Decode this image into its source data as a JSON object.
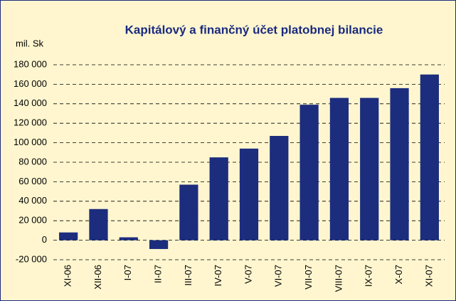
{
  "chart_data": {
    "type": "bar",
    "title": "Kapitálový a finančný účet platobnej bilancie",
    "y_label": "mil. Sk",
    "categories": [
      "XI-06",
      "XII-06",
      "I-07",
      "II-07",
      "III-07",
      "IV-07",
      "V-07",
      "VI-07",
      "VII-07",
      "VIII-07",
      "IX-07",
      "X-07",
      "XI-07"
    ],
    "values": [
      8000,
      32000,
      3000,
      -9000,
      57000,
      85000,
      94000,
      107000,
      139000,
      146000,
      146000,
      156000,
      170000
    ],
    "color": "#1c2d7e",
    "ylim": [
      -20000,
      180000
    ],
    "yticks": [
      {
        "value": -20000,
        "label": "-20 000"
      },
      0,
      {
        "value": 20000,
        "label": "20 000"
      },
      {
        "value": 40000,
        "label": "40 000"
      },
      {
        "value": 60000,
        "label": "60 000"
      },
      {
        "value": 80000,
        "label": "80 000"
      },
      {
        "value": 100000,
        "label": "100 000"
      },
      {
        "value": 120000,
        "label": "120 000"
      },
      {
        "value": 140000,
        "label": "140 000"
      },
      {
        "value": 160000,
        "label": "160 000"
      },
      {
        "value": 180000,
        "label": "180 000"
      }
    ],
    "grid": true
  }
}
